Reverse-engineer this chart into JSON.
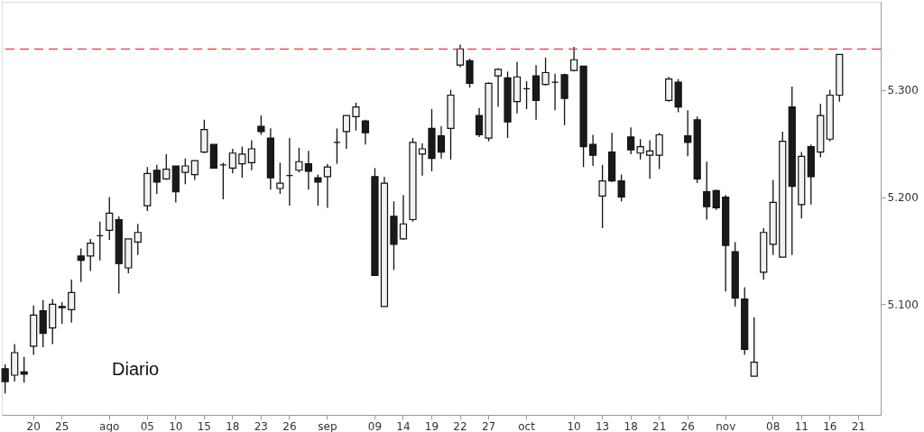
{
  "chart_data": {
    "type": "candlestick",
    "annotations": [
      "Diario"
    ],
    "categories": [
      null,
      null,
      null,
      "20",
      null,
      null,
      "25",
      null,
      null,
      null,
      null,
      "ago",
      null,
      null,
      null,
      "05",
      null,
      null,
      "10",
      null,
      null,
      "15",
      null,
      null,
      "18",
      null,
      null,
      "23",
      null,
      null,
      "26",
      null,
      null,
      null,
      "sep",
      null,
      null,
      null,
      null,
      "09",
      null,
      null,
      "14",
      null,
      null,
      "19",
      null,
      null,
      "22",
      null,
      null,
      "27",
      null,
      null,
      null,
      "oct",
      null,
      null,
      null,
      null,
      "10",
      null,
      null,
      "13",
      null,
      null,
      "18",
      null,
      null,
      "21",
      null,
      null,
      "26",
      null,
      null,
      null,
      "nov",
      null,
      null,
      null,
      null,
      "08",
      null,
      null,
      "11",
      null,
      null,
      "16",
      null,
      null,
      "21",
      null,
      null
    ],
    "ohlc": [
      [
        5040,
        5044,
        5017,
        5028
      ],
      [
        5034,
        5063,
        5028,
        5055
      ],
      [
        5037,
        5051,
        5027,
        5035
      ],
      [
        5061,
        5099,
        5053,
        5090
      ],
      [
        5094,
        5104,
        5060,
        5073
      ],
      [
        5078,
        5105,
        5063,
        5100
      ],
      [
        5098,
        5102,
        5082,
        5097
      ],
      [
        5095,
        5123,
        5083,
        5111
      ],
      [
        5145,
        5152,
        5121,
        5141
      ],
      [
        5145,
        5161,
        5131,
        5157
      ],
      [
        5164,
        5177,
        5141,
        5164
      ],
      [
        5169,
        5200,
        5160,
        5185
      ],
      [
        5179,
        5182,
        5110,
        5138
      ],
      [
        5134,
        5161,
        5129,
        5161
      ],
      [
        5158,
        5175,
        5146,
        5167
      ],
      [
        5192,
        5228,
        5187,
        5222
      ],
      [
        5225,
        5230,
        5203,
        5214
      ],
      [
        5217,
        5240,
        5216,
        5226
      ],
      [
        5229,
        5229,
        5195,
        5205
      ],
      [
        5223,
        5236,
        5212,
        5229
      ],
      [
        5221,
        5234,
        5216,
        5234
      ],
      [
        5242,
        5272,
        5241,
        5263
      ],
      [
        5249,
        5249,
        5227,
        5227
      ],
      [
        5230,
        5232,
        5198,
        5230
      ],
      [
        5227,
        5245,
        5222,
        5241
      ],
      [
        5231,
        5247,
        5218,
        5240
      ],
      [
        5232,
        5253,
        5225,
        5245
      ],
      [
        5266,
        5276,
        5258,
        5261
      ],
      [
        5255,
        5264,
        5207,
        5218
      ],
      [
        5208,
        5232,
        5203,
        5213
      ],
      [
        5220,
        5255,
        5192,
        5220
      ],
      [
        5225,
        5246,
        5223,
        5233
      ],
      [
        5231,
        5243,
        5207,
        5224
      ],
      [
        5218,
        5221,
        5192,
        5214
      ],
      [
        5219,
        5231,
        5190,
        5228
      ],
      [
        5251,
        5264,
        5231,
        5251
      ],
      [
        5261,
        5276,
        5245,
        5276
      ],
      [
        5275,
        5288,
        5262,
        5284
      ],
      [
        5271,
        5272,
        5249,
        5260
      ],
      [
        5219,
        5227,
        5127,
        5127
      ],
      [
        5098,
        5219,
        5098,
        5213
      ],
      [
        5182,
        5196,
        5132,
        5156
      ],
      [
        5161,
        5202,
        5160,
        5175
      ],
      [
        5179,
        5255,
        5177,
        5251
      ],
      [
        5240,
        5250,
        5220,
        5245
      ],
      [
        5264,
        5282,
        5224,
        5236
      ],
      [
        5257,
        5266,
        5236,
        5242
      ],
      [
        5264,
        5300,
        5235,
        5295
      ],
      [
        5323,
        5342,
        5321,
        5338
      ],
      [
        5327,
        5329,
        5302,
        5306
      ],
      [
        5276,
        5283,
        5256,
        5258
      ],
      [
        5255,
        5307,
        5252,
        5306
      ],
      [
        5313,
        5320,
        5284,
        5319
      ],
      [
        5311,
        5317,
        5255,
        5270
      ],
      [
        5289,
        5326,
        5278,
        5312
      ],
      [
        5301,
        5308,
        5282,
        5301
      ],
      [
        5313,
        5323,
        5272,
        5290
      ],
      [
        5305,
        5330,
        5304,
        5316
      ],
      [
        5307,
        5315,
        5281,
        5307
      ],
      [
        5314,
        5315,
        5267,
        5292
      ],
      [
        5318,
        5340,
        5317,
        5328
      ],
      [
        5322,
        5322,
        5228,
        5247
      ],
      [
        5249,
        5258,
        5229,
        5239
      ],
      [
        5201,
        5230,
        5171,
        5215
      ],
      [
        5242,
        5260,
        5214,
        5215
      ],
      [
        5215,
        5221,
        5196,
        5200
      ],
      [
        5256,
        5265,
        5240,
        5244
      ],
      [
        5241,
        5254,
        5235,
        5247
      ],
      [
        5239,
        5253,
        5217,
        5243
      ],
      [
        5239,
        5260,
        5226,
        5258
      ],
      [
        5290,
        5312,
        5289,
        5310
      ],
      [
        5307,
        5310,
        5279,
        5284
      ],
      [
        5257,
        5281,
        5238,
        5251
      ],
      [
        5272,
        5275,
        5213,
        5217
      ],
      [
        5205,
        5233,
        5179,
        5191
      ],
      [
        5206,
        5207,
        5188,
        5190
      ],
      [
        5200,
        5202,
        5112,
        5155
      ],
      [
        5149,
        5158,
        5098,
        5106
      ],
      [
        5105,
        5116,
        5053,
        5058
      ],
      [
        5033,
        5088,
        5033,
        5046
      ],
      [
        5130,
        5171,
        5123,
        5167
      ],
      [
        5156,
        5216,
        5146,
        5195
      ],
      [
        5144,
        5261,
        5144,
        5252
      ],
      [
        5284,
        5303,
        5146,
        5210
      ],
      [
        5193,
        5242,
        5180,
        5238
      ],
      [
        5247,
        5249,
        5193,
        5219
      ],
      [
        5242,
        5287,
        5237,
        5276
      ],
      [
        5254,
        5300,
        5252,
        5295
      ],
      [
        5295,
        5333,
        5289,
        5333
      ],
      null,
      null,
      null,
      null
    ],
    "ylim": [
      4997,
      5382
    ],
    "yticks": [
      {
        "value": 5100,
        "label": "5.100"
      },
      {
        "value": 5200,
        "label": "5.200"
      },
      {
        "value": 5300,
        "label": "5.300"
      }
    ],
    "ref_lines": [
      {
        "axis": "y",
        "value": 5338,
        "color": "#ff3333",
        "line_style": "dashed"
      }
    ],
    "grid": false
  }
}
